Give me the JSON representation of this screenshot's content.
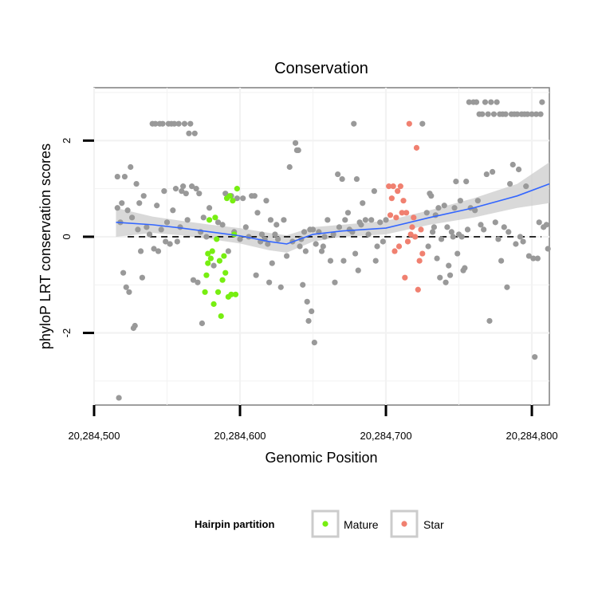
{
  "chart_data": {
    "type": "scatter",
    "title": "Conservation",
    "xlabel": "Genomic Position",
    "ylabel": "phyloP LRT conservation scores",
    "xlim": [
      20284500,
      20284812
    ],
    "ylim": [
      -3.5,
      3.1
    ],
    "x_ticks": [
      20284500,
      20284600,
      20284700,
      20284800
    ],
    "x_tick_labels": [
      "20,284,500",
      "20,284,600",
      "20,284,700",
      "20,284,800"
    ],
    "y_ticks": [
      -2,
      0,
      2
    ],
    "y_tick_labels": [
      "-2",
      "0",
      "2"
    ],
    "grid": true,
    "reference_line": {
      "y": 0,
      "style": "dashed"
    },
    "legend": {
      "title": "Hairpin partition",
      "position": "bottom",
      "entries": [
        {
          "label": "Mature",
          "color": "#77ee11"
        },
        {
          "label": "Star",
          "color": "#f08070"
        }
      ]
    },
    "colors": {
      "other": "#999999",
      "mature": "#77ee11",
      "star": "#f08070",
      "smooth": "#3366ff",
      "band": "#cccccc"
    },
    "smooth": {
      "x": [
        20284515,
        20284540,
        20284560,
        20284580,
        20284600,
        20284620,
        20284632,
        20284650,
        20284670,
        20284700,
        20284730,
        20284760,
        20284790,
        20284812
      ],
      "y": [
        0.3,
        0.25,
        0.18,
        0.1,
        0.02,
        -0.1,
        -0.15,
        0.05,
        0.12,
        0.18,
        0.4,
        0.6,
        0.85,
        1.1
      ],
      "lo": [
        0.0,
        0.08,
        0.03,
        -0.05,
        -0.14,
        -0.28,
        -0.33,
        -0.1,
        0.0,
        0.05,
        0.25,
        0.4,
        0.6,
        0.7
      ],
      "hi": [
        0.6,
        0.42,
        0.33,
        0.25,
        0.18,
        0.08,
        0.03,
        0.2,
        0.25,
        0.33,
        0.55,
        0.8,
        1.1,
        1.55
      ]
    },
    "series": [
      {
        "group": "other",
        "points": [
          [
            20284516,
            0.6
          ],
          [
            20284516,
            1.25
          ],
          [
            20284517,
            -3.35
          ],
          [
            20284518,
            0.3
          ],
          [
            20284519,
            0.7
          ],
          [
            20284520,
            -0.75
          ],
          [
            20284521,
            1.25
          ],
          [
            20284522,
            -1.05
          ],
          [
            20284523,
            0.55
          ],
          [
            20284524,
            -1.15
          ],
          [
            20284525,
            1.45
          ],
          [
            20284526,
            0.4
          ],
          [
            20284527,
            -1.9
          ],
          [
            20284528,
            -1.85
          ],
          [
            20284529,
            1.1
          ],
          [
            20284530,
            0.15
          ],
          [
            20284531,
            0.7
          ],
          [
            20284532,
            -0.3
          ],
          [
            20284533,
            -0.85
          ],
          [
            20284534,
            0.85
          ],
          [
            20284536,
            0.2
          ],
          [
            20284538,
            0.05
          ],
          [
            20284540,
            2.35
          ],
          [
            20284541,
            -0.25
          ],
          [
            20284542,
            2.35
          ],
          [
            20284543,
            0.65
          ],
          [
            20284544,
            -0.3
          ],
          [
            20284545,
            2.35
          ],
          [
            20284546,
            0.15
          ],
          [
            20284547,
            2.35
          ],
          [
            20284548,
            0.95
          ],
          [
            20284549,
            -0.1
          ],
          [
            20284550,
            0.3
          ],
          [
            20284551,
            2.35
          ],
          [
            20284552,
            -0.15
          ],
          [
            20284553,
            2.35
          ],
          [
            20284554,
            0.55
          ],
          [
            20284555,
            2.35
          ],
          [
            20284556,
            1.0
          ],
          [
            20284557,
            -0.1
          ],
          [
            20284558,
            2.35
          ],
          [
            20284559,
            0.2
          ],
          [
            20284560,
            0.95
          ],
          [
            20284561,
            1.05
          ],
          [
            20284562,
            2.35
          ],
          [
            20284563,
            0.9
          ],
          [
            20284564,
            0.35
          ],
          [
            20284565,
            2.15
          ],
          [
            20284566,
            2.35
          ],
          [
            20284567,
            1.05
          ],
          [
            20284568,
            -0.9
          ],
          [
            20284569,
            2.15
          ],
          [
            20284570,
            1.0
          ],
          [
            20284571,
            -0.95
          ],
          [
            20284572,
            0.9
          ],
          [
            20284573,
            0.1
          ],
          [
            20284574,
            -1.8
          ],
          [
            20284575,
            0.4
          ],
          [
            20284577,
            0.0
          ],
          [
            20284579,
            0.6
          ],
          [
            20284582,
            -0.6
          ],
          [
            20284585,
            0.3
          ],
          [
            20284588,
            0.25
          ],
          [
            20284590,
            0.9
          ],
          [
            20284592,
            -0.3
          ],
          [
            20284594,
            0.85
          ],
          [
            20284596,
            0.1
          ],
          [
            20284598,
            0.8
          ],
          [
            20284600,
            -0.05
          ],
          [
            20284602,
            0.8
          ],
          [
            20284604,
            0.2
          ],
          [
            20284606,
            0.0
          ],
          [
            20284608,
            0.85
          ],
          [
            20284610,
            0.85
          ],
          [
            20284611,
            -0.8
          ],
          [
            20284612,
            0.5
          ],
          [
            20284614,
            -0.1
          ],
          [
            20284615,
            0.05
          ],
          [
            20284617,
            -0.05
          ],
          [
            20284618,
            0.75
          ],
          [
            20284619,
            -0.15
          ],
          [
            20284620,
            -0.95
          ],
          [
            20284621,
            0.35
          ],
          [
            20284622,
            -0.55
          ],
          [
            20284624,
            0.05
          ],
          [
            20284625,
            0.25
          ],
          [
            20284626,
            -0.05
          ],
          [
            20284628,
            -1.05
          ],
          [
            20284630,
            0.35
          ],
          [
            20284632,
            -0.4
          ],
          [
            20284634,
            1.45
          ],
          [
            20284636,
            -0.1
          ],
          [
            20284638,
            1.95
          ],
          [
            20284639,
            1.8
          ],
          [
            20284640,
            1.8
          ],
          [
            20284641,
            -0.2
          ],
          [
            20284642,
            -0.05
          ],
          [
            20284643,
            -1.0
          ],
          [
            20284644,
            0.1
          ],
          [
            20284645,
            -0.3
          ],
          [
            20284646,
            -1.35
          ],
          [
            20284647,
            -1.75
          ],
          [
            20284648,
            0.15
          ],
          [
            20284649,
            -1.55
          ],
          [
            20284650,
            0.15
          ],
          [
            20284651,
            -2.2
          ],
          [
            20284652,
            -0.15
          ],
          [
            20284654,
            0.1
          ],
          [
            20284656,
            -0.3
          ],
          [
            20284657,
            -0.2
          ],
          [
            20284658,
            0.0
          ],
          [
            20284660,
            0.35
          ],
          [
            20284662,
            -0.5
          ],
          [
            20284664,
            0.05
          ],
          [
            20284665,
            -0.95
          ],
          [
            20284667,
            1.3
          ],
          [
            20284668,
            0.2
          ],
          [
            20284670,
            1.2
          ],
          [
            20284671,
            -0.5
          ],
          [
            20284672,
            0.35
          ],
          [
            20284674,
            0.5
          ],
          [
            20284675,
            0.15
          ],
          [
            20284677,
            0.1
          ],
          [
            20284678,
            2.35
          ],
          [
            20284679,
            -0.35
          ],
          [
            20284680,
            1.2
          ],
          [
            20284681,
            -0.7
          ],
          [
            20284682,
            0.3
          ],
          [
            20284683,
            0.25
          ],
          [
            20284684,
            0.7
          ],
          [
            20284686,
            0.35
          ],
          [
            20284688,
            0.05
          ],
          [
            20284690,
            0.35
          ],
          [
            20284692,
            0.95
          ],
          [
            20284693,
            -0.5
          ],
          [
            20284694,
            -0.2
          ],
          [
            20284696,
            0.3
          ],
          [
            20284698,
            -0.1
          ],
          [
            20284700,
            0.35
          ],
          [
            20284725,
            2.35
          ],
          [
            20284728,
            0.5
          ],
          [
            20284729,
            -0.2
          ],
          [
            20284730,
            0.9
          ],
          [
            20284731,
            0.85
          ],
          [
            20284732,
            0.1
          ],
          [
            20284733,
            0.2
          ],
          [
            20284734,
            0.45
          ],
          [
            20284735,
            -0.45
          ],
          [
            20284736,
            0.6
          ],
          [
            20284737,
            -0.85
          ],
          [
            20284738,
            -0.05
          ],
          [
            20284740,
            0.65
          ],
          [
            20284741,
            -0.95
          ],
          [
            20284742,
            0.2
          ],
          [
            20284743,
            -0.6
          ],
          [
            20284744,
            -0.8
          ],
          [
            20284745,
            0.1
          ],
          [
            20284746,
            0.0
          ],
          [
            20284747,
            0.6
          ],
          [
            20284748,
            1.15
          ],
          [
            20284749,
            -0.35
          ],
          [
            20284750,
            0.05
          ],
          [
            20284751,
            0.75
          ],
          [
            20284752,
            0.0
          ],
          [
            20284753,
            -0.7
          ],
          [
            20284754,
            -0.65
          ],
          [
            20284755,
            1.15
          ],
          [
            20284756,
            0.15
          ],
          [
            20284757,
            2.8
          ],
          [
            20284758,
            0.6
          ],
          [
            20284760,
            2.8
          ],
          [
            20284761,
            0.55
          ],
          [
            20284762,
            2.8
          ],
          [
            20284763,
            0.75
          ],
          [
            20284764,
            2.55
          ],
          [
            20284765,
            0.25
          ],
          [
            20284766,
            2.55
          ],
          [
            20284767,
            0.15
          ],
          [
            20284768,
            2.8
          ],
          [
            20284769,
            1.3
          ],
          [
            20284770,
            2.55
          ],
          [
            20284771,
            -1.75
          ],
          [
            20284772,
            2.8
          ],
          [
            20284773,
            1.35
          ],
          [
            20284774,
            2.55
          ],
          [
            20284775,
            0.3
          ],
          [
            20284776,
            2.8
          ],
          [
            20284777,
            -0.05
          ],
          [
            20284778,
            2.55
          ],
          [
            20284779,
            -0.5
          ],
          [
            20284780,
            2.55
          ],
          [
            20284781,
            0.2
          ],
          [
            20284782,
            2.55
          ],
          [
            20284783,
            -1.05
          ],
          [
            20284784,
            0.1
          ],
          [
            20284785,
            1.1
          ],
          [
            20284786,
            2.55
          ],
          [
            20284787,
            1.5
          ],
          [
            20284788,
            2.55
          ],
          [
            20284789,
            -0.15
          ],
          [
            20284790,
            2.55
          ],
          [
            20284791,
            1.4
          ],
          [
            20284792,
            0.0
          ],
          [
            20284793,
            2.55
          ],
          [
            20284794,
            -0.1
          ],
          [
            20284795,
            2.55
          ],
          [
            20284796,
            1.05
          ],
          [
            20284797,
            2.55
          ],
          [
            20284798,
            -0.4
          ],
          [
            20284800,
            2.55
          ],
          [
            20284801,
            -0.45
          ],
          [
            20284802,
            -2.5
          ],
          [
            20284803,
            2.55
          ],
          [
            20284804,
            -0.45
          ],
          [
            20284805,
            0.3
          ],
          [
            20284806,
            2.55
          ],
          [
            20284807,
            2.8
          ],
          [
            20284808,
            0.2
          ],
          [
            20284810,
            0.25
          ],
          [
            20284811,
            -0.25
          ]
        ]
      },
      {
        "group": "mature",
        "name": "Mature",
        "points": [
          [
            20284576,
            -1.15
          ],
          [
            20284577,
            -0.8
          ],
          [
            20284578,
            -0.55
          ],
          [
            20284578,
            -0.35
          ],
          [
            20284579,
            0.35
          ],
          [
            20284580,
            -0.45
          ],
          [
            20284581,
            -0.3
          ],
          [
            20284582,
            -1.4
          ],
          [
            20284583,
            0.4
          ],
          [
            20284584,
            -0.05
          ],
          [
            20284585,
            -1.15
          ],
          [
            20284586,
            -0.5
          ],
          [
            20284587,
            -1.65
          ],
          [
            20284588,
            -0.9
          ],
          [
            20284589,
            -0.4
          ],
          [
            20284590,
            -0.75
          ],
          [
            20284591,
            0.8
          ],
          [
            20284592,
            -1.25
          ],
          [
            20284593,
            0.85
          ],
          [
            20284594,
            -1.2
          ],
          [
            20284595,
            0.75
          ],
          [
            20284596,
            0.05
          ],
          [
            20284597,
            -1.2
          ],
          [
            20284598,
            1.0
          ]
        ]
      },
      {
        "group": "star",
        "name": "Star",
        "points": [
          [
            20284702,
            1.05
          ],
          [
            20284703,
            0.45
          ],
          [
            20284704,
            0.8
          ],
          [
            20284705,
            1.05
          ],
          [
            20284706,
            -0.3
          ],
          [
            20284707,
            0.4
          ],
          [
            20284708,
            0.95
          ],
          [
            20284709,
            -0.2
          ],
          [
            20284710,
            1.05
          ],
          [
            20284711,
            0.5
          ],
          [
            20284712,
            0.75
          ],
          [
            20284713,
            -0.85
          ],
          [
            20284714,
            0.5
          ],
          [
            20284715,
            -0.1
          ],
          [
            20284716,
            2.35
          ],
          [
            20284717,
            0.05
          ],
          [
            20284718,
            0.2
          ],
          [
            20284719,
            0.4
          ],
          [
            20284720,
            0.0
          ],
          [
            20284721,
            1.85
          ],
          [
            20284722,
            -1.1
          ],
          [
            20284723,
            -0.5
          ],
          [
            20284724,
            0.15
          ],
          [
            20284725,
            -0.35
          ]
        ]
      }
    ]
  }
}
